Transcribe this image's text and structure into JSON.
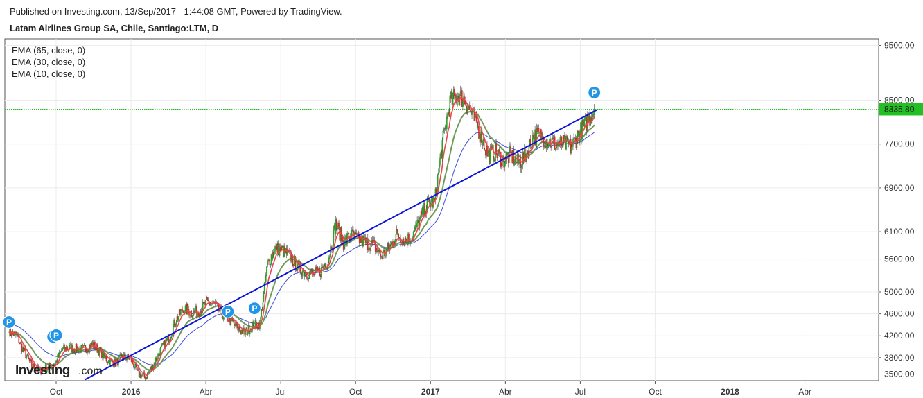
{
  "header": {
    "published": "Published on Investing.com, 13/Sep/2017 - 1:44:08 GMT, Powered by TradingView.",
    "instrument": "Latam Airlines Group SA, Chile, Santiago:LTM, D"
  },
  "logo": {
    "brand": "Investing",
    "suffix": ".com"
  },
  "chart_data": {
    "type": "candlestick",
    "legend": [
      "EMA (65, close, 0)",
      "EMA (30, close, 0)",
      "EMA (10, close, 0)"
    ],
    "y_axis": {
      "ticks": [
        3500,
        3800,
        4200,
        4600,
        5000,
        5600,
        6100,
        6900,
        7700,
        8500,
        9500
      ],
      "tick_labels": [
        "3500.00",
        "3800.00",
        "4200.00",
        "4600.00",
        "5000.00",
        "5600.00",
        "6100.00",
        "6900.00",
        "7700.00",
        "8500.00",
        "9500.00"
      ],
      "position": "right"
    },
    "x_axis": {
      "ticks": [
        {
          "label": "Oct",
          "year": false
        },
        {
          "label": "2016",
          "year": true
        },
        {
          "label": "Abr",
          "year": false
        },
        {
          "label": "Jul",
          "year": false
        },
        {
          "label": "Oct",
          "year": false
        },
        {
          "label": "2017",
          "year": true
        },
        {
          "label": "Abr",
          "year": false
        },
        {
          "label": "Jul",
          "year": false
        },
        {
          "label": "Oct",
          "year": false
        },
        {
          "label": "2018",
          "year": true
        },
        {
          "label": "Abr",
          "year": false
        }
      ]
    },
    "current_price": 8335.8,
    "current_price_label": "8335.80",
    "price_anchors": [
      [
        0,
        4280
      ],
      [
        1,
        4200
      ],
      [
        2,
        3900
      ],
      [
        3,
        3650
      ],
      [
        4,
        3560
      ],
      [
        5,
        3620
      ],
      [
        6,
        3680
      ],
      [
        7,
        3950
      ],
      [
        8,
        3980
      ],
      [
        9,
        3960
      ],
      [
        10,
        3950
      ],
      [
        11,
        4050
      ],
      [
        12,
        3900
      ],
      [
        13,
        3750
      ],
      [
        14,
        3700
      ],
      [
        15,
        3820
      ],
      [
        16,
        3780
      ],
      [
        17,
        3500
      ],
      [
        18,
        3450
      ],
      [
        19,
        3680
      ],
      [
        20,
        3950
      ],
      [
        21,
        4150
      ],
      [
        22,
        4500
      ],
      [
        23,
        4700
      ],
      [
        24,
        4620
      ],
      [
        25,
        4650
      ],
      [
        26,
        4800
      ],
      [
        27,
        4780
      ],
      [
        28,
        4600
      ],
      [
        29,
        4500
      ],
      [
        30,
        4350
      ],
      [
        31,
        4250
      ],
      [
        32,
        4380
      ],
      [
        33,
        4420
      ],
      [
        34,
        5500
      ],
      [
        35,
        5800
      ],
      [
        36,
        5750
      ],
      [
        37,
        5650
      ],
      [
        38,
        5450
      ],
      [
        39,
        5350
      ],
      [
        40,
        5320
      ],
      [
        41,
        5380
      ],
      [
        42,
        5600
      ],
      [
        43,
        6250
      ],
      [
        44,
        5900
      ],
      [
        45,
        6050
      ],
      [
        46,
        5950
      ],
      [
        47,
        5900
      ],
      [
        48,
        5850
      ],
      [
        49,
        5650
      ],
      [
        50,
        5800
      ],
      [
        51,
        6050
      ],
      [
        52,
        5950
      ],
      [
        53,
        6000
      ],
      [
        54,
        6300
      ],
      [
        55,
        6600
      ],
      [
        56,
        6650
      ],
      [
        57,
        7700
      ],
      [
        58,
        8450
      ],
      [
        59,
        8600
      ],
      [
        60,
        8500
      ],
      [
        61,
        8200
      ],
      [
        62,
        7900
      ],
      [
        63,
        7500
      ],
      [
        64,
        7550
      ],
      [
        65,
        7400
      ],
      [
        66,
        7500
      ],
      [
        67,
        7350
      ],
      [
        68,
        7500
      ],
      [
        69,
        7850
      ],
      [
        70,
        7850
      ],
      [
        71,
        7750
      ],
      [
        72,
        7700
      ],
      [
        73,
        7700
      ],
      [
        74,
        7650
      ],
      [
        75,
        7900
      ],
      [
        76,
        8100
      ],
      [
        77,
        8335.8
      ]
    ],
    "last_bar": 77,
    "trendline": [
      [
        10,
        3400
      ],
      [
        77.3,
        8320
      ]
    ],
    "markers": [
      {
        "bar": 0,
        "price": 4450,
        "label": "P"
      },
      {
        "bar": 5.8,
        "price": 4180,
        "label": "P"
      },
      {
        "bar": 6.2,
        "price": 4210,
        "label": "P"
      },
      {
        "bar": 28.8,
        "price": 4640,
        "label": "P"
      },
      {
        "bar": 32.3,
        "price": 4700,
        "label": "P"
      },
      {
        "bar": 77,
        "price": 8640,
        "label": "P"
      }
    ],
    "ylim": [
      3380,
      9620
    ],
    "colors": {
      "up": "#27a327",
      "down": "#d92a2a",
      "ema10": "#e8474b",
      "ema30": "#6f9a5a",
      "ema65": "#3c4cd6",
      "trendline": "#0a14d8",
      "price_line": "#22c022",
      "marker": "#2196e6"
    }
  }
}
